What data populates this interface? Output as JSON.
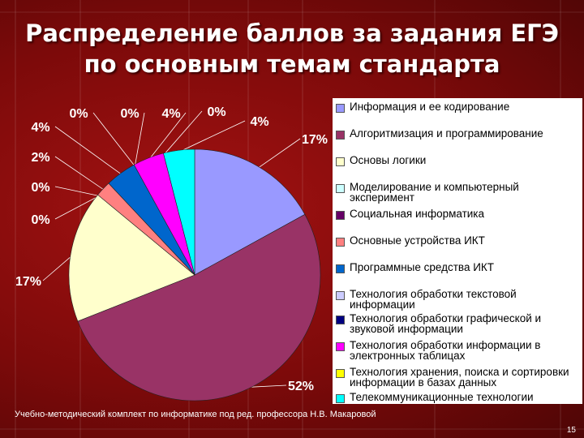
{
  "slide": {
    "title_line1": "Распределение баллов за задания ЕГЭ",
    "title_line2": "по основным темам стандарта",
    "footer": "Учебно-методический комплект по информатике под ред. профессора Н.В. Макаровой",
    "page_number": "15"
  },
  "chart_data": {
    "type": "pie",
    "legend_position": "right",
    "slices": [
      {
        "label": "Информация и ее кодирование",
        "value": 17,
        "data_label": "17%",
        "color": "#9999ff"
      },
      {
        "label": "Алгоритмизация и программирование",
        "value": 52,
        "data_label": "52%",
        "color": "#993366"
      },
      {
        "label": "Основы логики",
        "value": 17,
        "data_label": "17%",
        "color": "#ffffcc"
      },
      {
        "label": "Моделирование и компьютерный эксперимент",
        "value": 0,
        "data_label": "0%",
        "color": "#ccffff"
      },
      {
        "label": "Социальная информатика",
        "value": 0,
        "data_label": "0%",
        "color": "#660066"
      },
      {
        "label": "Основные устройства ИКТ",
        "value": 2,
        "data_label": "2%",
        "color": "#ff8080"
      },
      {
        "label": "Программные средства ИКТ",
        "value": 4,
        "data_label": "4%",
        "color": "#0066cc"
      },
      {
        "label": "Технология обработки текстовой информации",
        "value": 0,
        "data_label": "0%",
        "color": "#ccccff"
      },
      {
        "label": "Технология обработки графической и звуковой информации",
        "value": 0,
        "data_label": "0%",
        "color": "#000080"
      },
      {
        "label": "Технология обработки информации в электронных таблицах",
        "value": 4,
        "data_label": "4%",
        "color": "#ff00ff"
      },
      {
        "label": "Технология хранения, поиска и сортировки информации в базах данных",
        "value": 0,
        "data_label": "0%",
        "color": "#ffff00"
      },
      {
        "label": "Телекоммуникационные технологии",
        "value": 4,
        "data_label": "4%",
        "color": "#00ffff"
      }
    ]
  }
}
